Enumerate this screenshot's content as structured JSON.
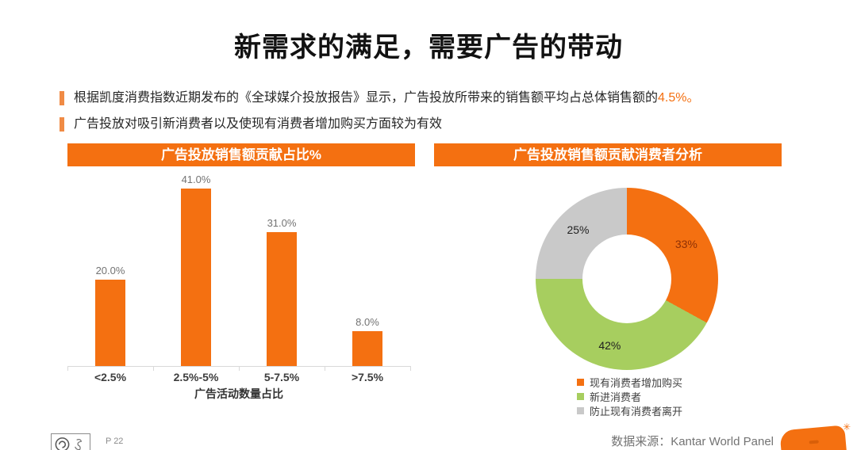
{
  "title": "新需求的满足，需要广告的带动",
  "bullets": [
    {
      "text": "根据凯度消费指数近期发布的《全球媒介投放报告》显示，广告投放所带来的销售额平均占总体销售额的",
      "highlight": "4.5%。"
    },
    {
      "text": "广告投放对吸引新消费者以及使现有消费者增加购买方面较为有效",
      "highlight": ""
    }
  ],
  "colors": {
    "accent_orange": "#f47011",
    "pie_green": "#a7ce5f",
    "pie_gray": "#c9c9c9",
    "axis_gray": "#d9d9d9"
  },
  "chart_data": [
    {
      "type": "bar",
      "title": "广告投放销售额贡献占比%",
      "categories": [
        "<2.5%",
        "2.5%-5%",
        "5-7.5%",
        ">7.5%"
      ],
      "values": [
        20.0,
        41.0,
        31.0,
        8.0
      ],
      "value_labels": [
        "20.0%",
        "41.0%",
        "31.0%",
        "8.0%"
      ],
      "xlabel": "广告活动数量占比",
      "ylabel": "",
      "ylim": [
        0,
        44.7
      ],
      "grid": false,
      "legend": "none",
      "bar_color": "#f47011"
    },
    {
      "type": "pie",
      "donut": true,
      "title": "广告投放销售额贡献消费者分析",
      "start_angle_deg": 0,
      "direction": "clockwise",
      "legend_position": "bottom-left",
      "slices": [
        {
          "label": "现有消费者增加购买",
          "value": 33,
          "display": "33%",
          "color": "#f47011",
          "label_color": "#8f3105"
        },
        {
          "label": "新进消费者",
          "value": 42,
          "display": "42%",
          "color": "#a7ce5f",
          "label_color": "#1f1f1f"
        },
        {
          "label": "防止现有消费者离开",
          "value": 25,
          "display": "25%",
          "color": "#c9c9c9",
          "label_color": "#1f1f1f"
        }
      ]
    }
  ],
  "footer": {
    "page_label": "P 22",
    "source_label": "数据来源：Kantar World Panel",
    "asterisk_icon": "✳"
  }
}
